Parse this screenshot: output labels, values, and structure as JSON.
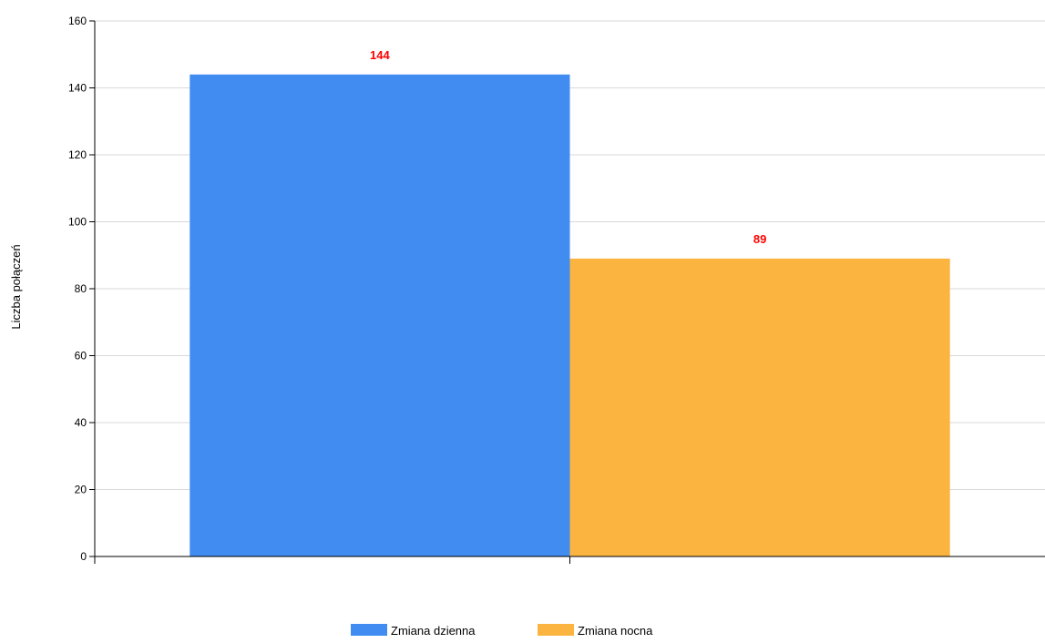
{
  "chart_data": {
    "type": "bar",
    "title": "",
    "xlabel": "",
    "ylabel": "Liczba połączeń",
    "ylim": [
      0,
      160
    ],
    "yticks": [
      0,
      20,
      40,
      60,
      80,
      100,
      120,
      140,
      160
    ],
    "grid": true,
    "legend_position": "bottom",
    "categories": [
      ""
    ],
    "series": [
      {
        "name": "Zmiana dzienna",
        "values": [
          144
        ],
        "color": "#418CF0",
        "data_label": "144"
      },
      {
        "name": "Zmiana nocna",
        "values": [
          89
        ],
        "color": "#FCB441",
        "data_label": "89"
      }
    ],
    "data_label_color": "#FF0000",
    "gridline_color": "#D9D9D9",
    "axis_color": "#000000"
  }
}
